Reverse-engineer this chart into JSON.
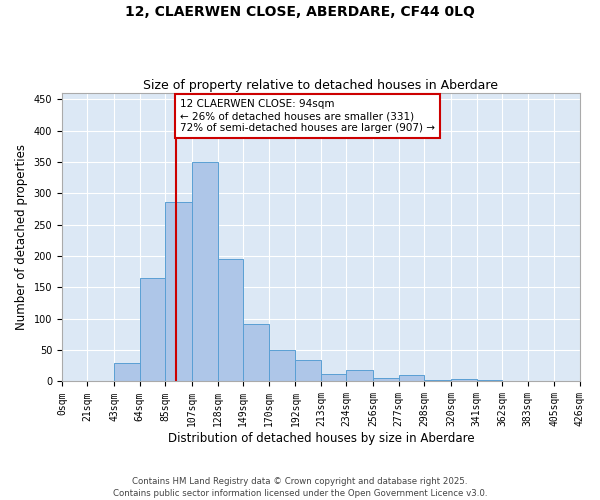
{
  "title": "12, CLAERWEN CLOSE, ABERDARE, CF44 0LQ",
  "subtitle": "Size of property relative to detached houses in Aberdare",
  "xlabel": "Distribution of detached houses by size in Aberdare",
  "ylabel": "Number of detached properties",
  "bin_edges": [
    0,
    21,
    43,
    64,
    85,
    107,
    128,
    149,
    170,
    192,
    213,
    234,
    256,
    277,
    298,
    320,
    341,
    362,
    383,
    405,
    426
  ],
  "bin_labels": [
    "0sqm",
    "21sqm",
    "43sqm",
    "64sqm",
    "85sqm",
    "107sqm",
    "128sqm",
    "149sqm",
    "170sqm",
    "192sqm",
    "213sqm",
    "234sqm",
    "256sqm",
    "277sqm",
    "298sqm",
    "320sqm",
    "341sqm",
    "362sqm",
    "383sqm",
    "405sqm",
    "426sqm"
  ],
  "bar_heights": [
    1,
    0,
    30,
    165,
    287,
    350,
    195,
    92,
    50,
    35,
    12,
    18,
    6,
    10,
    3,
    4,
    2,
    1,
    0,
    1
  ],
  "bar_color": "#aec6e8",
  "bar_edge_color": "#5a9fd4",
  "property_value": 94,
  "property_label": "12 CLAERWEN CLOSE: 94sqm",
  "pct_smaller": 26,
  "count_smaller": 331,
  "pct_larger_semi": 72,
  "count_larger_semi": 907,
  "vline_color": "#cc0000",
  "annotation_box_color": "#cc0000",
  "ylim": [
    0,
    460
  ],
  "yticks": [
    0,
    50,
    100,
    150,
    200,
    250,
    300,
    350,
    400,
    450
  ],
  "bg_color": "#dce8f5",
  "footer_text": "Contains HM Land Registry data © Crown copyright and database right 2025.\nContains public sector information licensed under the Open Government Licence v3.0.",
  "title_fontsize": 10,
  "subtitle_fontsize": 9,
  "axis_label_fontsize": 8.5,
  "tick_fontsize": 7,
  "annotation_fontsize": 7.5
}
